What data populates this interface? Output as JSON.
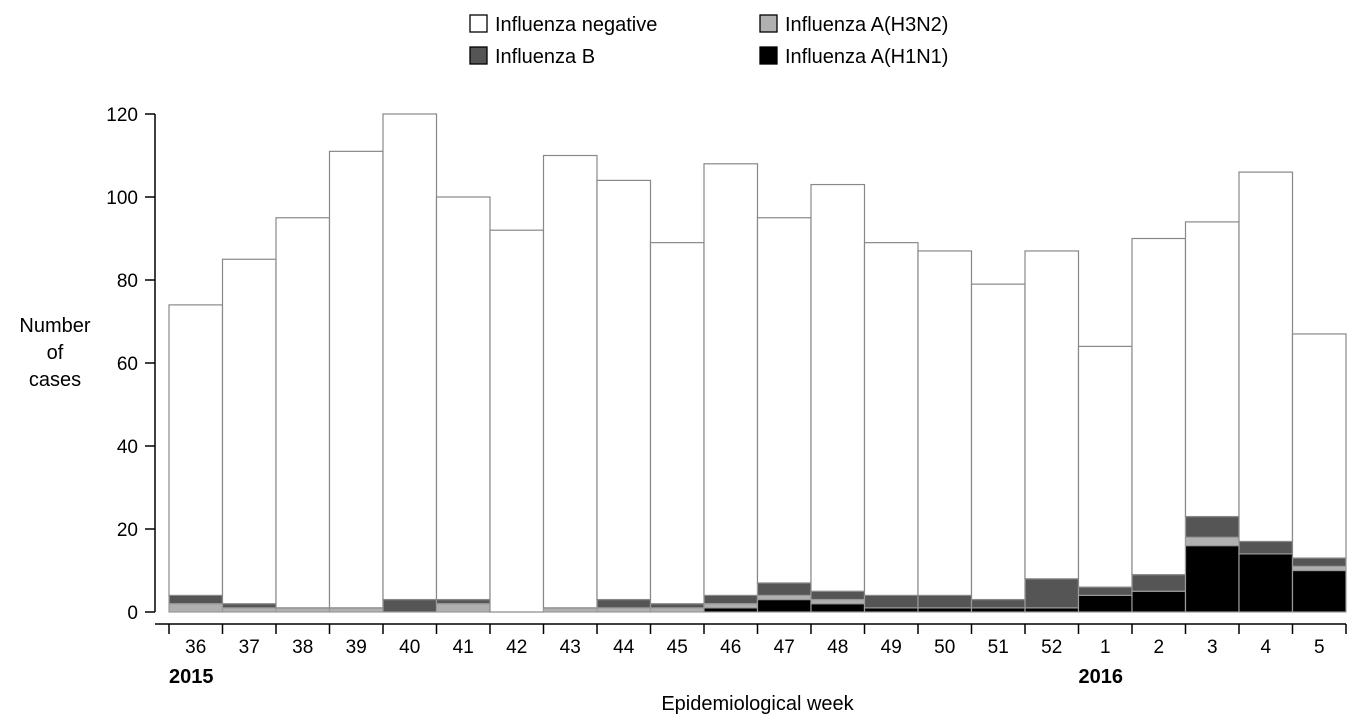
{
  "chart_data": {
    "type": "bar",
    "stacked": true,
    "xlabel": "Epidemiological week",
    "ylabel_lines": [
      "Number",
      "of",
      "cases"
    ],
    "ylim": [
      0,
      120
    ],
    "yticks": [
      0,
      20,
      40,
      60,
      80,
      100,
      120
    ],
    "grid": false,
    "legend_position": "top-center",
    "categories": [
      "36",
      "37",
      "38",
      "39",
      "40",
      "41",
      "42",
      "43",
      "44",
      "45",
      "46",
      "47",
      "48",
      "49",
      "50",
      "51",
      "52",
      "1",
      "2",
      "3",
      "4",
      "5"
    ],
    "year_labels": [
      {
        "text": "2015",
        "category_index": 0
      },
      {
        "text": "2016",
        "category_index": 17
      }
    ],
    "series": [
      {
        "name": "Influenza A(H1N1)",
        "color": "#000000",
        "values": [
          0,
          0,
          0,
          0,
          0,
          0,
          0,
          0,
          0,
          0,
          1,
          3,
          2,
          1,
          1,
          1,
          1,
          4,
          5,
          16,
          14,
          10
        ]
      },
      {
        "name": "Influenza A(H3N2)",
        "color": "#b0b0b0",
        "values": [
          2,
          1,
          1,
          1,
          0,
          2,
          0,
          1,
          1,
          1,
          1,
          1,
          1,
          0,
          0,
          0,
          0,
          0,
          0,
          2,
          0,
          1
        ]
      },
      {
        "name": "Influenza B",
        "color": "#555555",
        "values": [
          2,
          1,
          0,
          0,
          3,
          1,
          0,
          0,
          2,
          1,
          2,
          3,
          2,
          3,
          3,
          2,
          7,
          2,
          4,
          5,
          3,
          2
        ]
      },
      {
        "name": "Influenza negative",
        "color": "#ffffff",
        "values": [
          70,
          83,
          94,
          110,
          117,
          97,
          92,
          109,
          101,
          87,
          104,
          88,
          98,
          85,
          83,
          76,
          79,
          58,
          81,
          71,
          89,
          54
        ]
      }
    ],
    "legend": [
      {
        "label": "Influenza negative",
        "series_index": 3
      },
      {
        "label": "Influenza A(H3N2)",
        "series_index": 1
      },
      {
        "label": "Influenza B",
        "series_index": 2
      },
      {
        "label": "Influenza A(H1N1)",
        "series_index": 0
      }
    ]
  }
}
